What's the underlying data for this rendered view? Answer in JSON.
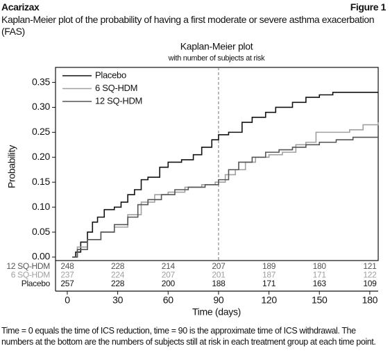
{
  "header": {
    "title": "Acarizax",
    "figure_label": "Figure 1",
    "caption": "Kaplan-Meier plot of the probability of having a first moderate or severe asthma exacerbation (FAS)"
  },
  "footnote": "Time = 0 equals the time of ICS reduction, time = 90 is the approximate time of ICS withdrawal. The numbers at the bottom are the numbers of subjects still at risk in each treatment group at each time point.",
  "chart_data": {
    "type": "step",
    "title": "Kaplan-Meier plot",
    "subtitle": "with number of subjects at risk",
    "x_label": "Time (days)",
    "y_label": "Probability",
    "xlim": [
      -7,
      185
    ],
    "ylim": [
      -0.007,
      0.38
    ],
    "xticks": [
      0,
      30,
      60,
      90,
      120,
      150,
      180
    ],
    "yticks": [
      {
        "value": 0,
        "label": "0.00"
      },
      {
        "value": 0.05,
        "label": "0.05"
      },
      {
        "value": 0.1,
        "label": "0.10"
      },
      {
        "value": 0.15,
        "label": "0.15"
      },
      {
        "value": 0.2,
        "label": "0.20"
      },
      {
        "value": 0.25,
        "label": "0.25"
      },
      {
        "value": 0.3,
        "label": "0.30"
      },
      {
        "value": 0.35,
        "label": "0.35"
      }
    ],
    "reference_x": 90,
    "series": [
      {
        "name": "Placebo",
        "color": "#111111",
        "x": [
          3,
          5,
          8,
          12,
          15,
          18,
          22,
          28,
          32,
          36,
          40,
          44,
          48,
          55,
          60,
          68,
          75,
          80,
          86,
          90,
          96,
          104,
          110,
          118,
          124,
          134,
          142,
          150,
          158,
          185
        ],
        "values": [
          0,
          0.01,
          0.03,
          0.05,
          0.07,
          0.08,
          0.095,
          0.1,
          0.11,
          0.125,
          0.135,
          0.155,
          0.16,
          0.18,
          0.19,
          0.195,
          0.205,
          0.22,
          0.235,
          0.245,
          0.25,
          0.27,
          0.28,
          0.29,
          0.3,
          0.31,
          0.32,
          0.325,
          0.33,
          0.33
        ],
        "at_risk": [
          257,
          228,
          200,
          188,
          171,
          163,
          109
        ]
      },
      {
        "name": "6 SQ-HDM",
        "color": "#a0a0a0",
        "x": [
          3,
          6,
          12,
          20,
          28,
          36,
          44,
          52,
          60,
          70,
          80,
          88,
          94,
          100,
          106,
          112,
          120,
          128,
          136,
          142,
          148,
          168,
          176,
          185
        ],
        "values": [
          0,
          0.02,
          0.035,
          0.05,
          0.06,
          0.085,
          0.11,
          0.125,
          0.13,
          0.14,
          0.145,
          0.15,
          0.165,
          0.175,
          0.19,
          0.2,
          0.205,
          0.21,
          0.225,
          0.23,
          0.25,
          0.255,
          0.265,
          0.27
        ],
        "at_risk": [
          237,
          224,
          207,
          201,
          187,
          171,
          122
        ]
      },
      {
        "name": "12 SQ-HDM",
        "color": "#555555",
        "x": [
          3,
          6,
          12,
          20,
          28,
          36,
          42,
          48,
          56,
          64,
          72,
          82,
          90,
          96,
          102,
          110,
          118,
          126,
          134,
          142,
          150,
          160,
          170,
          185
        ],
        "values": [
          0,
          0.015,
          0.035,
          0.05,
          0.065,
          0.08,
          0.105,
          0.115,
          0.125,
          0.135,
          0.14,
          0.145,
          0.155,
          0.175,
          0.19,
          0.2,
          0.21,
          0.215,
          0.22,
          0.225,
          0.23,
          0.235,
          0.24,
          0.245
        ],
        "at_risk": [
          248,
          228,
          214,
          207,
          189,
          180,
          121
        ]
      }
    ],
    "risk_table_order": [
      2,
      1,
      0
    ]
  }
}
